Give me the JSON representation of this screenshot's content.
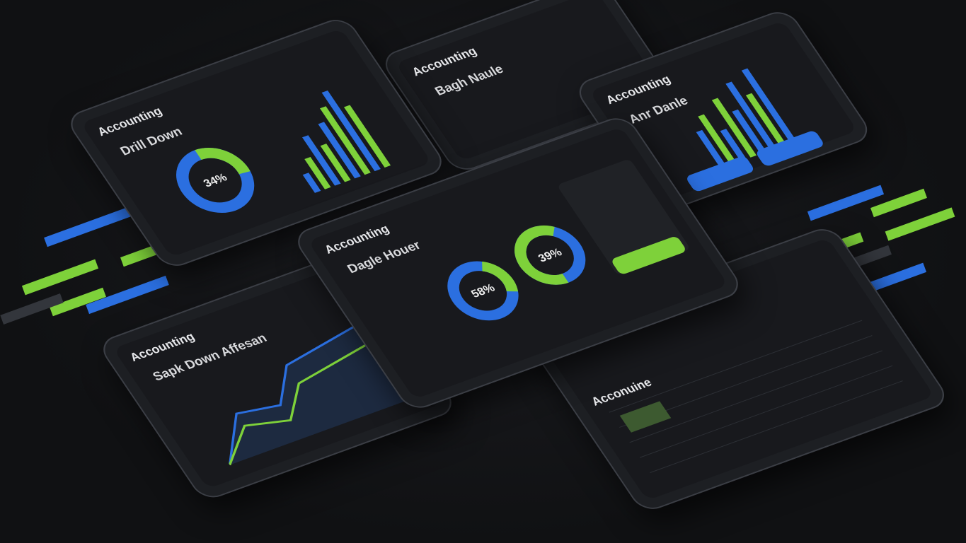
{
  "panels": [
    {
      "title": "Accounting",
      "subtitle": "Drill Down",
      "donut_label": "34%"
    },
    {
      "title": "Accounting",
      "subtitle": "Bagh Naule"
    },
    {
      "title": "Accounting",
      "subtitle": "Anr Danle"
    },
    {
      "title": "Accounting",
      "subtitle": "Dagle Houer",
      "donut_labels": [
        "58%",
        "39%"
      ]
    },
    {
      "title": "Accounting",
      "subtitle": "Sapk Down Affesan"
    },
    {
      "title": "Acconuine"
    }
  ]
}
